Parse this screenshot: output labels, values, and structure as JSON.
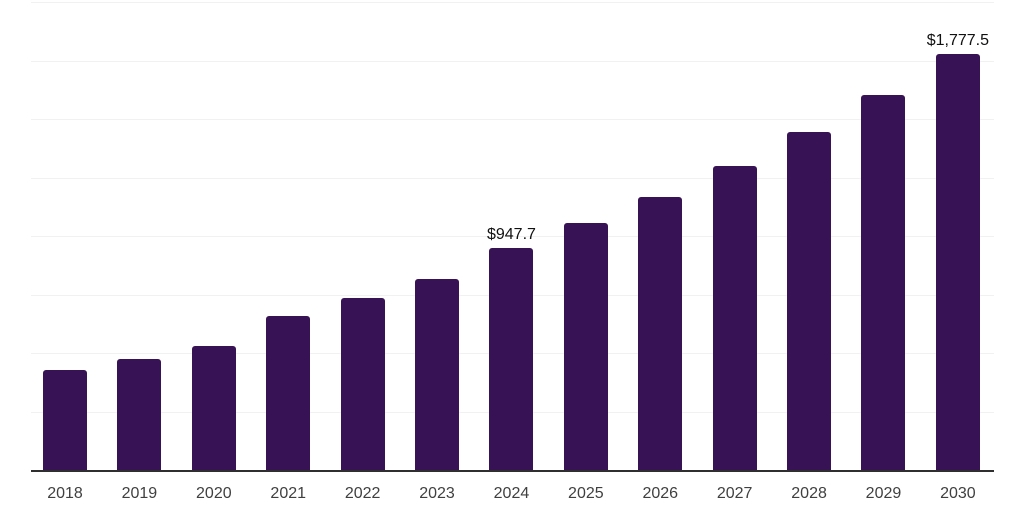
{
  "chart_data": {
    "type": "bar",
    "title": "",
    "xlabel": "",
    "ylabel": "",
    "categories": [
      "2018",
      "2019",
      "2020",
      "2021",
      "2022",
      "2023",
      "2024",
      "2025",
      "2026",
      "2027",
      "2028",
      "2029",
      "2030"
    ],
    "values": [
      427,
      474,
      530,
      658,
      735,
      816,
      947.7,
      1056,
      1167,
      1299,
      1444,
      1603,
      1777.5
    ],
    "value_labels": [
      "",
      "",
      "",
      "",
      "",
      "",
      "$947.7",
      "",
      "",
      "",
      "",
      "",
      "$1,777.5"
    ],
    "ylim": [
      0,
      2000
    ],
    "gridline_step": 250,
    "grid": "horizontal",
    "legend": "none",
    "colors": {
      "bar": "#371254",
      "axis_line": "#2f2f2f",
      "gridline": "#f1f1f2",
      "tick_label": "#404040",
      "value_label": "#111111",
      "background": "#ffffff"
    }
  }
}
